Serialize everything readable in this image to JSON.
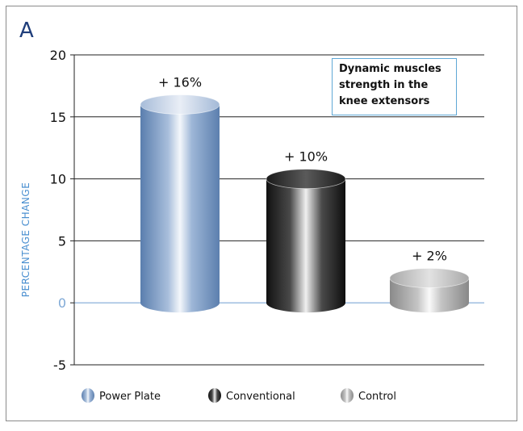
{
  "panel_label": "A",
  "chart_data": {
    "type": "bar",
    "categories": [
      "Power Plate",
      "Conventional",
      "Control"
    ],
    "values": [
      16,
      10,
      2
    ],
    "value_labels": [
      "+ 16%",
      "+ 10%",
      "+ 2%"
    ],
    "ylabel": "PERCENTAGE CHANGE",
    "ylim": [
      -5,
      20
    ],
    "yticks": [
      -5,
      0,
      5,
      10,
      15,
      20
    ],
    "grid": true,
    "annotation": "Dynamic muscles strength in the knee extensors",
    "legend": {
      "position": "bottom",
      "entries": [
        "Power Plate",
        "Conventional",
        "Control"
      ]
    },
    "colors": {
      "Power Plate": "#6a8ab8",
      "Conventional": "#1e1e1e",
      "Control": "#8e8e8e",
      "zero_axis": "#7fa9d6",
      "ylabel": "#4a8fd0"
    }
  }
}
